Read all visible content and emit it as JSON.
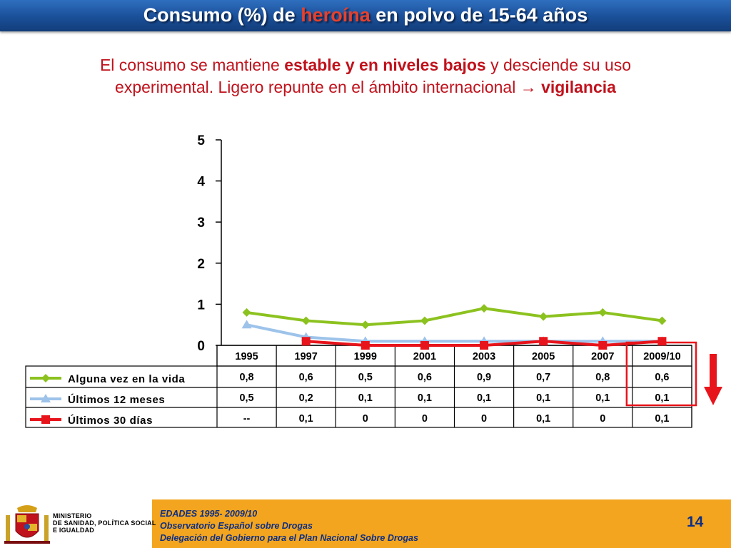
{
  "header": {
    "title_pre": "Consumo (%) de ",
    "title_highlight": "heroína",
    "title_post": " en polvo de 15-64 años"
  },
  "subtitle": {
    "p1": "El consumo se mantiene ",
    "p2": "estable y en niveles bajos",
    "p3": " y desciende su uso experimental. Ligero repunte en el ámbito internacional ",
    "arrow": "→",
    "p4": "vigilancia"
  },
  "chart_data": {
    "type": "line",
    "categories": [
      "1995",
      "1997",
      "1999",
      "2001",
      "2003",
      "2005",
      "2007",
      "2009/10"
    ],
    "yticks": [
      "0",
      "1",
      "2",
      "3",
      "4",
      "5"
    ],
    "ylim": [
      0,
      5
    ],
    "series": [
      {
        "name": "Alguna vez en la vida",
        "color": "#8cc21f",
        "marker": "diamond",
        "values": [
          0.8,
          0.6,
          0.5,
          0.6,
          0.9,
          0.7,
          0.8,
          0.6
        ],
        "labels": [
          "0,8",
          "0,6",
          "0,5",
          "0,6",
          "0,9",
          "0,7",
          "0,8",
          "0,6"
        ]
      },
      {
        "name": "Últimos 12 meses",
        "color": "#9dc3ea",
        "marker": "triangle",
        "values": [
          0.5,
          0.2,
          0.1,
          0.1,
          0.1,
          0.1,
          0.1,
          0.1
        ],
        "labels": [
          "0,5",
          "0,2",
          "0,1",
          "0,1",
          "0,1",
          "0,1",
          "0,1",
          "0,1"
        ]
      },
      {
        "name": "Últimos 30 días",
        "color": "#e8141b",
        "marker": "square",
        "values": [
          null,
          0.1,
          0,
          0,
          0,
          0.1,
          0,
          0.1
        ],
        "labels": [
          "--",
          "0,1",
          "0",
          "0",
          "0",
          "0,1",
          "0",
          "0,1"
        ]
      }
    ],
    "highlight_category": "2009/10",
    "trend_arrow": "down",
    "highlight_color": "#e8141b"
  },
  "footer": {
    "ministry_lines": [
      "MINISTERIO",
      "DE SANIDAD, POLÍTICA SOCIAL",
      "E IGUALDAD"
    ],
    "source_lines": [
      "EDADES 1995- 2009/10",
      "Observatorio Español sobre Drogas",
      "Delegación del Gobierno para el Plan Nacional Sobre Drogas"
    ],
    "page_number": "14"
  }
}
